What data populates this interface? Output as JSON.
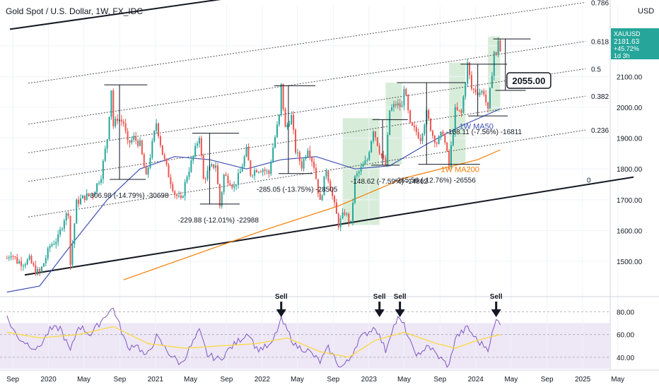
{
  "symbol": {
    "title": "Gold Spot / U.S. Dollar, 1W, FX_IDC",
    "ticker": "XAUUSD",
    "last_price": "2181.63",
    "change_pct": "+45.72%",
    "time_left": "1d 3h",
    "currency": "USD"
  },
  "chart_data": {
    "type": "line",
    "title": "Gold Spot / U.S. Dollar, 1W, FX_IDC",
    "price_axis": {
      "range": [
        1390,
        2330
      ],
      "ticks": [
        1500,
        1600,
        1700,
        1800,
        1900,
        2000,
        2100,
        2200
      ],
      "tick_labels": [
        "1500.00",
        "1600.00",
        "1700.00",
        "1800.00",
        "1900.00",
        "2000.00",
        "2100.00",
        "2200.00"
      ]
    },
    "time_axis": {
      "ticks": [
        "2019-09",
        "2020-01",
        "2020-05",
        "2020-09",
        "2021-01",
        "2021-05",
        "2021-09",
        "2022-01",
        "2022-05",
        "2022-09",
        "2023-01",
        "2023-05",
        "2023-09",
        "2024-01",
        "2024-05",
        "2024-09",
        "2025-01",
        "2025-05"
      ],
      "tick_labels": [
        "Sep",
        "2020",
        "May",
        "Sep",
        "2021",
        "May",
        "Sep",
        "2022",
        "May",
        "Sep",
        "2023",
        "May",
        "Sep",
        "2024",
        "May",
        "Sep",
        "2025",
        "May"
      ]
    },
    "price_path": [
      [
        "2019-08-12",
        1510
      ],
      [
        "2019-08-26",
        1528
      ],
      [
        "2019-09-16",
        1500
      ],
      [
        "2019-10-07",
        1495
      ],
      [
        "2019-10-28",
        1505
      ],
      [
        "2019-11-18",
        1468
      ],
      [
        "2019-12-02",
        1462
      ],
      [
        "2019-12-23",
        1512
      ],
      [
        "2020-01-06",
        1550
      ],
      [
        "2020-02-03",
        1575
      ],
      [
        "2020-02-24",
        1640
      ],
      [
        "2020-03-09",
        1660
      ],
      [
        "2020-03-16",
        1490
      ],
      [
        "2020-04-06",
        1690
      ],
      [
        "2020-05-04",
        1710
      ],
      [
        "2020-06-01",
        1720
      ],
      [
        "2020-06-29",
        1780
      ],
      [
        "2020-07-20",
        1900
      ],
      [
        "2020-08-03",
        2060
      ],
      [
        "2020-08-10",
        1940
      ],
      [
        "2020-08-24",
        1965
      ],
      [
        "2020-09-14",
        1950
      ],
      [
        "2020-09-28",
        1880
      ],
      [
        "2020-10-19",
        1900
      ],
      [
        "2020-11-09",
        1880
      ],
      [
        "2020-11-30",
        1770
      ],
      [
        "2020-12-21",
        1880
      ],
      [
        "2021-01-04",
        1950
      ],
      [
        "2021-01-25",
        1850
      ],
      [
        "2021-02-15",
        1780
      ],
      [
        "2021-03-08",
        1720
      ],
      [
        "2021-03-29",
        1695
      ],
      [
        "2021-04-19",
        1780
      ],
      [
        "2021-05-10",
        1840
      ],
      [
        "2021-05-31",
        1910
      ],
      [
        "2021-06-14",
        1765
      ],
      [
        "2021-07-05",
        1800
      ],
      [
        "2021-07-26",
        1815
      ],
      [
        "2021-08-09",
        1680
      ],
      [
        "2021-08-23",
        1780
      ],
      [
        "2021-09-13",
        1760
      ],
      [
        "2021-09-27",
        1740
      ],
      [
        "2021-10-18",
        1790
      ],
      [
        "2021-11-08",
        1860
      ],
      [
        "2021-11-22",
        1785
      ],
      [
        "2021-12-13",
        1800
      ],
      [
        "2022-01-03",
        1800
      ],
      [
        "2022-01-24",
        1785
      ],
      [
        "2022-02-07",
        1870
      ],
      [
        "2022-02-28",
        1970
      ],
      [
        "2022-03-07",
        2070
      ],
      [
        "2022-03-21",
        1930
      ],
      [
        "2022-04-11",
        1970
      ],
      [
        "2022-04-25",
        1860
      ],
      [
        "2022-05-16",
        1810
      ],
      [
        "2022-06-06",
        1870
      ],
      [
        "2022-06-27",
        1810
      ],
      [
        "2022-07-18",
        1690
      ],
      [
        "2022-08-08",
        1800
      ],
      [
        "2022-08-29",
        1710
      ],
      [
        "2022-09-19",
        1620
      ],
      [
        "2022-10-10",
        1660
      ],
      [
        "2022-10-31",
        1620
      ],
      [
        "2022-11-14",
        1770
      ],
      [
        "2022-12-05",
        1800
      ],
      [
        "2022-12-26",
        1830
      ],
      [
        "2023-01-16",
        1930
      ],
      [
        "2023-02-06",
        1860
      ],
      [
        "2023-02-27",
        1810
      ],
      [
        "2023-03-13",
        1990
      ],
      [
        "2023-04-03",
        2010
      ],
      [
        "2023-04-24",
        2000
      ],
      [
        "2023-05-01",
        2070
      ],
      [
        "2023-05-22",
        1940
      ],
      [
        "2023-06-12",
        1920
      ],
      [
        "2023-06-26",
        1900
      ],
      [
        "2023-07-17",
        1980
      ],
      [
        "2023-08-07",
        1910
      ],
      [
        "2023-08-21",
        1885
      ],
      [
        "2023-09-11",
        1920
      ],
      [
        "2023-10-02",
        1810
      ],
      [
        "2023-10-23",
        1990
      ],
      [
        "2023-11-13",
        1980
      ],
      [
        "2023-12-04",
        2140
      ],
      [
        "2023-12-18",
        2060
      ],
      [
        "2024-01-08",
        2050
      ],
      [
        "2024-01-29",
        2050
      ],
      [
        "2024-02-12",
        1985
      ],
      [
        "2024-03-04",
        2180
      ],
      [
        "2024-03-11",
        2165
      ],
      [
        "2024-03-18",
        2222
      ],
      [
        "2024-03-25",
        2181.63
      ]
    ],
    "series": [
      {
        "name": "1W MA50",
        "color": "#3f51b5",
        "points": [
          [
            "2019-08-12",
            1400
          ],
          [
            "2019-12-02",
            1420
          ],
          [
            "2020-03-16",
            1550
          ],
          [
            "2020-07-20",
            1700
          ],
          [
            "2020-11-09",
            1800
          ],
          [
            "2021-03-08",
            1840
          ],
          [
            "2021-07-05",
            1830
          ],
          [
            "2021-11-08",
            1800
          ],
          [
            "2022-03-07",
            1830
          ],
          [
            "2022-07-04",
            1840
          ],
          [
            "2022-11-14",
            1800
          ],
          [
            "2023-03-13",
            1810
          ],
          [
            "2023-07-17",
            1880
          ],
          [
            "2023-11-13",
            1940
          ],
          [
            "2024-03-25",
            1995
          ]
        ]
      },
      {
        "name": "1W MA200",
        "color": "#f57c00",
        "points": [
          [
            "2020-09-14",
            1440
          ],
          [
            "2021-05-10",
            1520
          ],
          [
            "2022-01-03",
            1600
          ],
          [
            "2022-09-19",
            1680
          ],
          [
            "2023-05-01",
            1770
          ],
          [
            "2024-01-08",
            1830
          ],
          [
            "2024-03-25",
            1862
          ]
        ]
      }
    ],
    "fib_channel": {
      "levels": [
        "0",
        "0.236",
        "0.382",
        "0.5",
        "0.618",
        "0.786"
      ],
      "base_line": {
        "start": [
          "2019-09-16",
          1452
        ],
        "end": [
          "2025-06-01",
          1770
        ]
      },
      "top_line": {
        "start": [
          "2019-09-16",
          2073
        ],
        "end": [
          "2025-06-01",
          2360
        ]
      }
    },
    "measures": [
      {
        "label": "-306.98 (-14.79%) -30698",
        "from": [
          "2020-08-03",
          2073
        ],
        "to": [
          "2020-09-28",
          1766
        ]
      },
      {
        "label": "-229.88 (-12.01%) -22988",
        "from": [
          "2021-05-31",
          1916
        ],
        "to": [
          "2021-08-09",
          1686
        ]
      },
      {
        "label": "-285.05 (-13.75%) -28505",
        "from": [
          "2022-03-07",
          2070
        ],
        "to": [
          "2022-04-25",
          1785
        ]
      },
      {
        "label": "-148.62 (-7.59%) -14862",
        "from": [
          "2023-02-06",
          1960
        ],
        "to": [
          "2023-02-27",
          1812
        ]
      },
      {
        "label": "-265.56 (-12.76%) -26556",
        "from": [
          "2023-05-01",
          2080
        ],
        "to": [
          "2023-10-02",
          1815
        ]
      },
      {
        "label": "-168.11 (-7.56%) -16811",
        "from": [
          "2023-12-04",
          2140
        ],
        "to": [
          "2024-02-12",
          1972
        ]
      },
      {
        "label": "",
        "from": [
          "2024-03-25",
          2222
        ],
        "to": [
          "2024-04-29",
          2055
        ]
      }
    ],
    "target_label": "2055.00",
    "rally_zones": [
      {
        "start": "2022-10-03",
        "end": "2023-02-06",
        "low": 1618,
        "high": 1965
      },
      {
        "start": "2023-02-27",
        "end": "2023-04-24",
        "low": 1815,
        "high": 2080
      },
      {
        "start": "2023-10-02",
        "end": "2023-11-27",
        "low": 1815,
        "high": 2145
      },
      {
        "start": "2024-02-12",
        "end": "2024-03-25",
        "low": 1985,
        "high": 2230
      }
    ],
    "ma_labels": {
      "ma50": "1W MA50",
      "ma200": "1W MA200"
    },
    "rsi": {
      "range": [
        30,
        92
      ],
      "ticks": [
        40,
        60,
        80
      ],
      "tick_labels": [
        "40.00",
        "60.00",
        "80.00"
      ],
      "band": [
        30,
        70
      ],
      "values": [
        [
          "2019-08-12",
          75
        ],
        [
          "2019-09-16",
          58
        ],
        [
          "2019-10-21",
          52
        ],
        [
          "2019-11-25",
          47
        ],
        [
          "2020-01-06",
          64
        ],
        [
          "2020-02-10",
          66
        ],
        [
          "2020-03-16",
          45
        ],
        [
          "2020-04-13",
          68
        ],
        [
          "2020-05-25",
          60
        ],
        [
          "2020-07-20",
          79
        ],
        [
          "2020-08-10",
          83
        ],
        [
          "2020-09-28",
          48
        ],
        [
          "2020-10-26",
          52
        ],
        [
          "2020-11-30",
          40
        ],
        [
          "2021-01-04",
          58
        ],
        [
          "2021-02-15",
          44
        ],
        [
          "2021-03-29",
          34
        ],
        [
          "2021-05-31",
          63
        ],
        [
          "2021-06-28",
          42
        ],
        [
          "2021-08-09",
          38
        ],
        [
          "2021-09-13",
          48
        ],
        [
          "2021-11-15",
          62
        ],
        [
          "2021-12-13",
          47
        ],
        [
          "2022-01-31",
          50
        ],
        [
          "2022-03-07",
          73
        ],
        [
          "2022-04-25",
          50
        ],
        [
          "2022-06-06",
          46
        ],
        [
          "2022-07-18",
          36
        ],
        [
          "2022-08-15",
          48
        ],
        [
          "2022-09-26",
          31
        ],
        [
          "2022-10-24",
          37
        ],
        [
          "2022-11-28",
          56
        ],
        [
          "2023-01-23",
          67
        ],
        [
          "2023-02-27",
          46
        ],
        [
          "2023-03-20",
          64
        ],
        [
          "2023-04-10",
          74
        ],
        [
          "2023-05-01",
          68
        ],
        [
          "2023-05-29",
          48
        ],
        [
          "2023-06-26",
          40
        ],
        [
          "2023-07-17",
          52
        ],
        [
          "2023-08-21",
          42
        ],
        [
          "2023-10-02",
          32
        ],
        [
          "2023-10-23",
          57
        ],
        [
          "2023-12-04",
          66
        ],
        [
          "2024-01-08",
          54
        ],
        [
          "2024-02-12",
          48
        ],
        [
          "2024-03-11",
          72
        ],
        [
          "2024-03-25",
          71
        ]
      ],
      "ma": [
        [
          "2019-08-12",
          62
        ],
        [
          "2019-12-02",
          57
        ],
        [
          "2020-04-13",
          60
        ],
        [
          "2020-08-10",
          67
        ],
        [
          "2020-12-07",
          52
        ],
        [
          "2021-04-12",
          48
        ],
        [
          "2021-08-09",
          50
        ],
        [
          "2021-12-13",
          52
        ],
        [
          "2022-03-28",
          57
        ],
        [
          "2022-07-18",
          45
        ],
        [
          "2022-10-24",
          40
        ],
        [
          "2023-01-23",
          55
        ],
        [
          "2023-05-01",
          62
        ],
        [
          "2023-08-21",
          52
        ],
        [
          "2023-10-23",
          48
        ],
        [
          "2024-01-08",
          55
        ],
        [
          "2024-03-25",
          60
        ]
      ],
      "signals": [
        {
          "label": "Sell",
          "date": "2022-03-07"
        },
        {
          "label": "Sell",
          "date": "2023-02-06"
        },
        {
          "label": "Sell",
          "date": "2023-04-17"
        },
        {
          "label": "Sell",
          "date": "2024-03-11"
        }
      ]
    }
  },
  "colors": {
    "up": "#26a69a",
    "down": "#ef5350",
    "ma50": "#3f51b5",
    "ma200": "#f57c00",
    "rsi": "#7e57c2",
    "rsi_ma": "#fdd835",
    "rsi_band": "#ede7f6",
    "zone": "#c8e6c9",
    "price_tag": "#26a69a"
  }
}
